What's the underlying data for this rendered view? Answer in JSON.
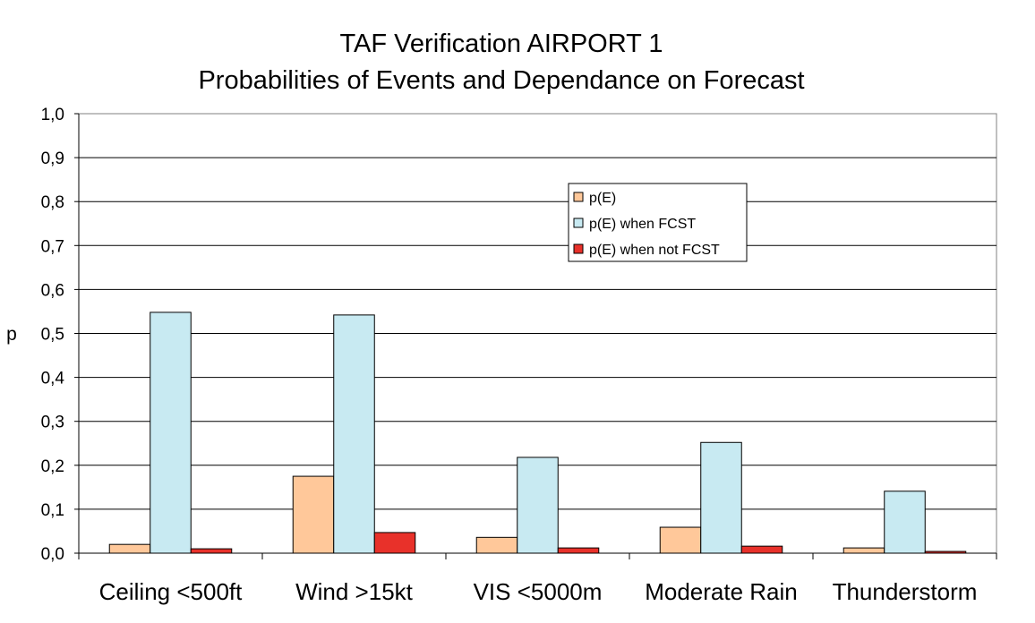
{
  "chart_data": {
    "type": "bar",
    "title": [
      "TAF Verification AIRPORT 1",
      "Probabilities of Events and Dependance on Forecast"
    ],
    "xlabel": "",
    "ylabel": "p",
    "ylim": [
      0,
      1
    ],
    "yticks": [
      "0,0",
      "0,1",
      "0,2",
      "0,3",
      "0,4",
      "0,5",
      "0,6",
      "0,7",
      "0,8",
      "0,9",
      "1,0"
    ],
    "grid": true,
    "legend_position": "upper-center-right",
    "categories": [
      "Ceiling <500ft",
      "Wind >15kt",
      "VIS <5000m",
      "Moderate Rain",
      "Thunderstorm"
    ],
    "series": [
      {
        "name": "p(E)",
        "color": "#FFC89A",
        "values": [
          0.02,
          0.175,
          0.036,
          0.059,
          0.012
        ]
      },
      {
        "name": "p(E) when FCST",
        "color": "#C8EAF2",
        "values": [
          0.548,
          0.542,
          0.218,
          0.252,
          0.141
        ]
      },
      {
        "name": "p(E) when not FCST",
        "color": "#E8312A",
        "values": [
          0.01,
          0.047,
          0.012,
          0.016,
          0.004
        ]
      }
    ]
  }
}
